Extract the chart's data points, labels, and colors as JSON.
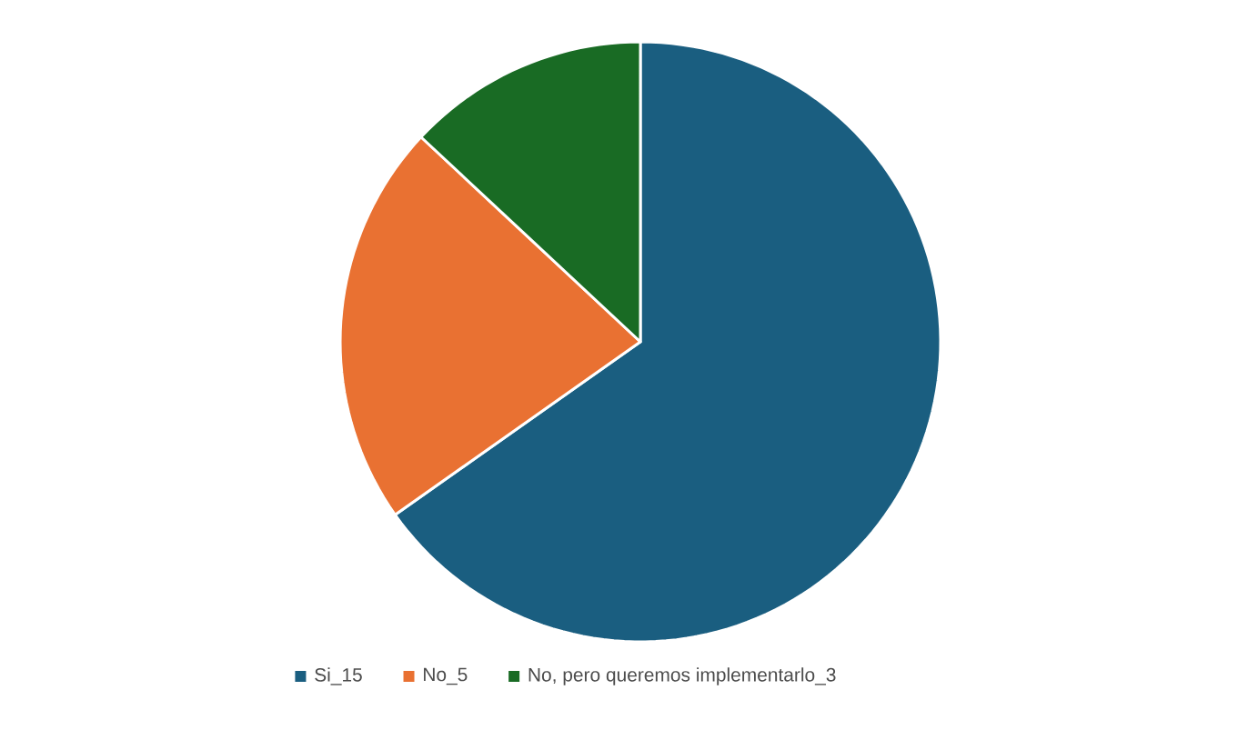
{
  "chart_data": {
    "type": "pie",
    "categories": [
      "Si_15",
      "No_5",
      "No, pero queremos implementarlo_3"
    ],
    "values": [
      15,
      5,
      3
    ],
    "colors": [
      "#1a5e80",
      "#e97132",
      "#196b24"
    ],
    "legend": "bottom"
  }
}
